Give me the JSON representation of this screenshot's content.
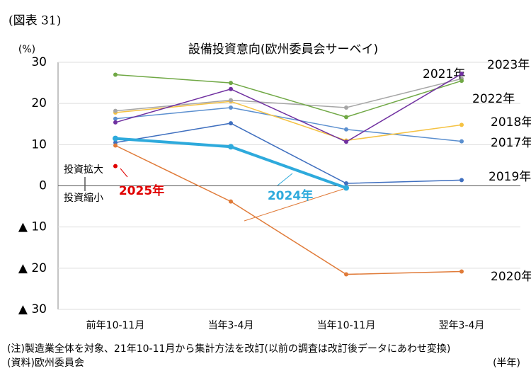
{
  "figure_label": "(図表 31)",
  "chart_data": {
    "type": "line",
    "title": "設備投資意向(欧州委員会サーベイ)",
    "y_unit": "(%)",
    "x_unit": "(半年)",
    "categories": [
      "前年10-11月",
      "当年3-4月",
      "当年10-11月",
      "翌年3-4月"
    ],
    "ylim": [
      -30,
      30
    ],
    "yticks": [
      30,
      20,
      10,
      0,
      {
        "value": -10,
        "label": "▲ 10"
      },
      {
        "value": -20,
        "label": "▲ 20"
      },
      {
        "value": -30,
        "label": "▲ 30"
      }
    ],
    "grid": true,
    "annotations": [
      "投資拡大",
      "投資縮小"
    ],
    "series": [
      {
        "name": "2017年",
        "color": "#5b8fcf",
        "values": [
          16.3,
          19,
          13.7,
          10.8
        ]
      },
      {
        "name": "2018年",
        "color": "#f5c242",
        "values": [
          17.8,
          20.5,
          11,
          14.8
        ]
      },
      {
        "name": "2019年",
        "color": "#3f6fbf",
        "values": [
          10.5,
          15.2,
          0.6,
          1.4
        ]
      },
      {
        "name": "2020年",
        "color": "#e07b39",
        "values": [
          9.8,
          -3.8,
          -21.5,
          -20.8
        ]
      },
      {
        "name": "2021年",
        "color": "#a6a6a6",
        "values": [
          18.2,
          20.8,
          19,
          26
        ]
      },
      {
        "name": "2022年",
        "color": "#70a845",
        "values": [
          27,
          25,
          16.7,
          25.5
        ]
      },
      {
        "name": "2023年",
        "color": "#7030a0",
        "values": [
          15.4,
          23.5,
          10.7,
          27.2
        ]
      },
      {
        "name": "2024年",
        "color": "#2eaadc",
        "values": [
          11.5,
          9.5,
          -0.5,
          null
        ]
      },
      {
        "name": "2025年",
        "color": "#e00000",
        "values": [
          4.8,
          null,
          null,
          null
        ]
      }
    ],
    "notes": [
      "(注)製造業全体を対象、21年10-11月から集計方法を改訂(以前の調査は改訂後データにあわせ変換)",
      "(資料)欧州委員会"
    ]
  }
}
